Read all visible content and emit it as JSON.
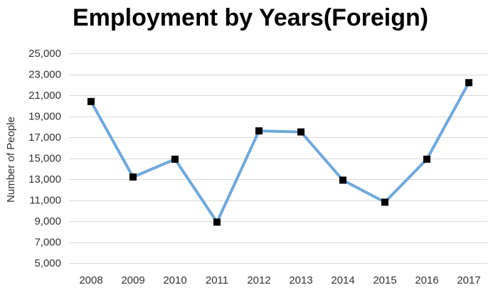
{
  "chart_data": {
    "type": "line",
    "title": "Employment by Years(Foreign)",
    "xlabel": "",
    "ylabel": "Number of People",
    "categories": [
      "2008",
      "2009",
      "2010",
      "2011",
      "2012",
      "2013",
      "2014",
      "2015",
      "2016",
      "2017"
    ],
    "series": [
      {
        "values": [
          20400,
          13200,
          14900,
          8900,
          17600,
          17500,
          12900,
          10800,
          14900,
          22200
        ],
        "color": "#6fa8dc",
        "marker": "square",
        "marker_color": "#000000"
      }
    ],
    "ylim": [
      5000,
      25000
    ],
    "yticks": [
      5000,
      7000,
      9000,
      11000,
      13000,
      15000,
      17000,
      19000,
      21000,
      23000,
      25000
    ],
    "ytick_labels": [
      "5,000",
      "7,000",
      "9,000",
      "11,000",
      "13,000",
      "15,000",
      "17,000",
      "19,000",
      "21,000",
      "23,000",
      "25,000"
    ],
    "grid": true,
    "legend": "none"
  }
}
